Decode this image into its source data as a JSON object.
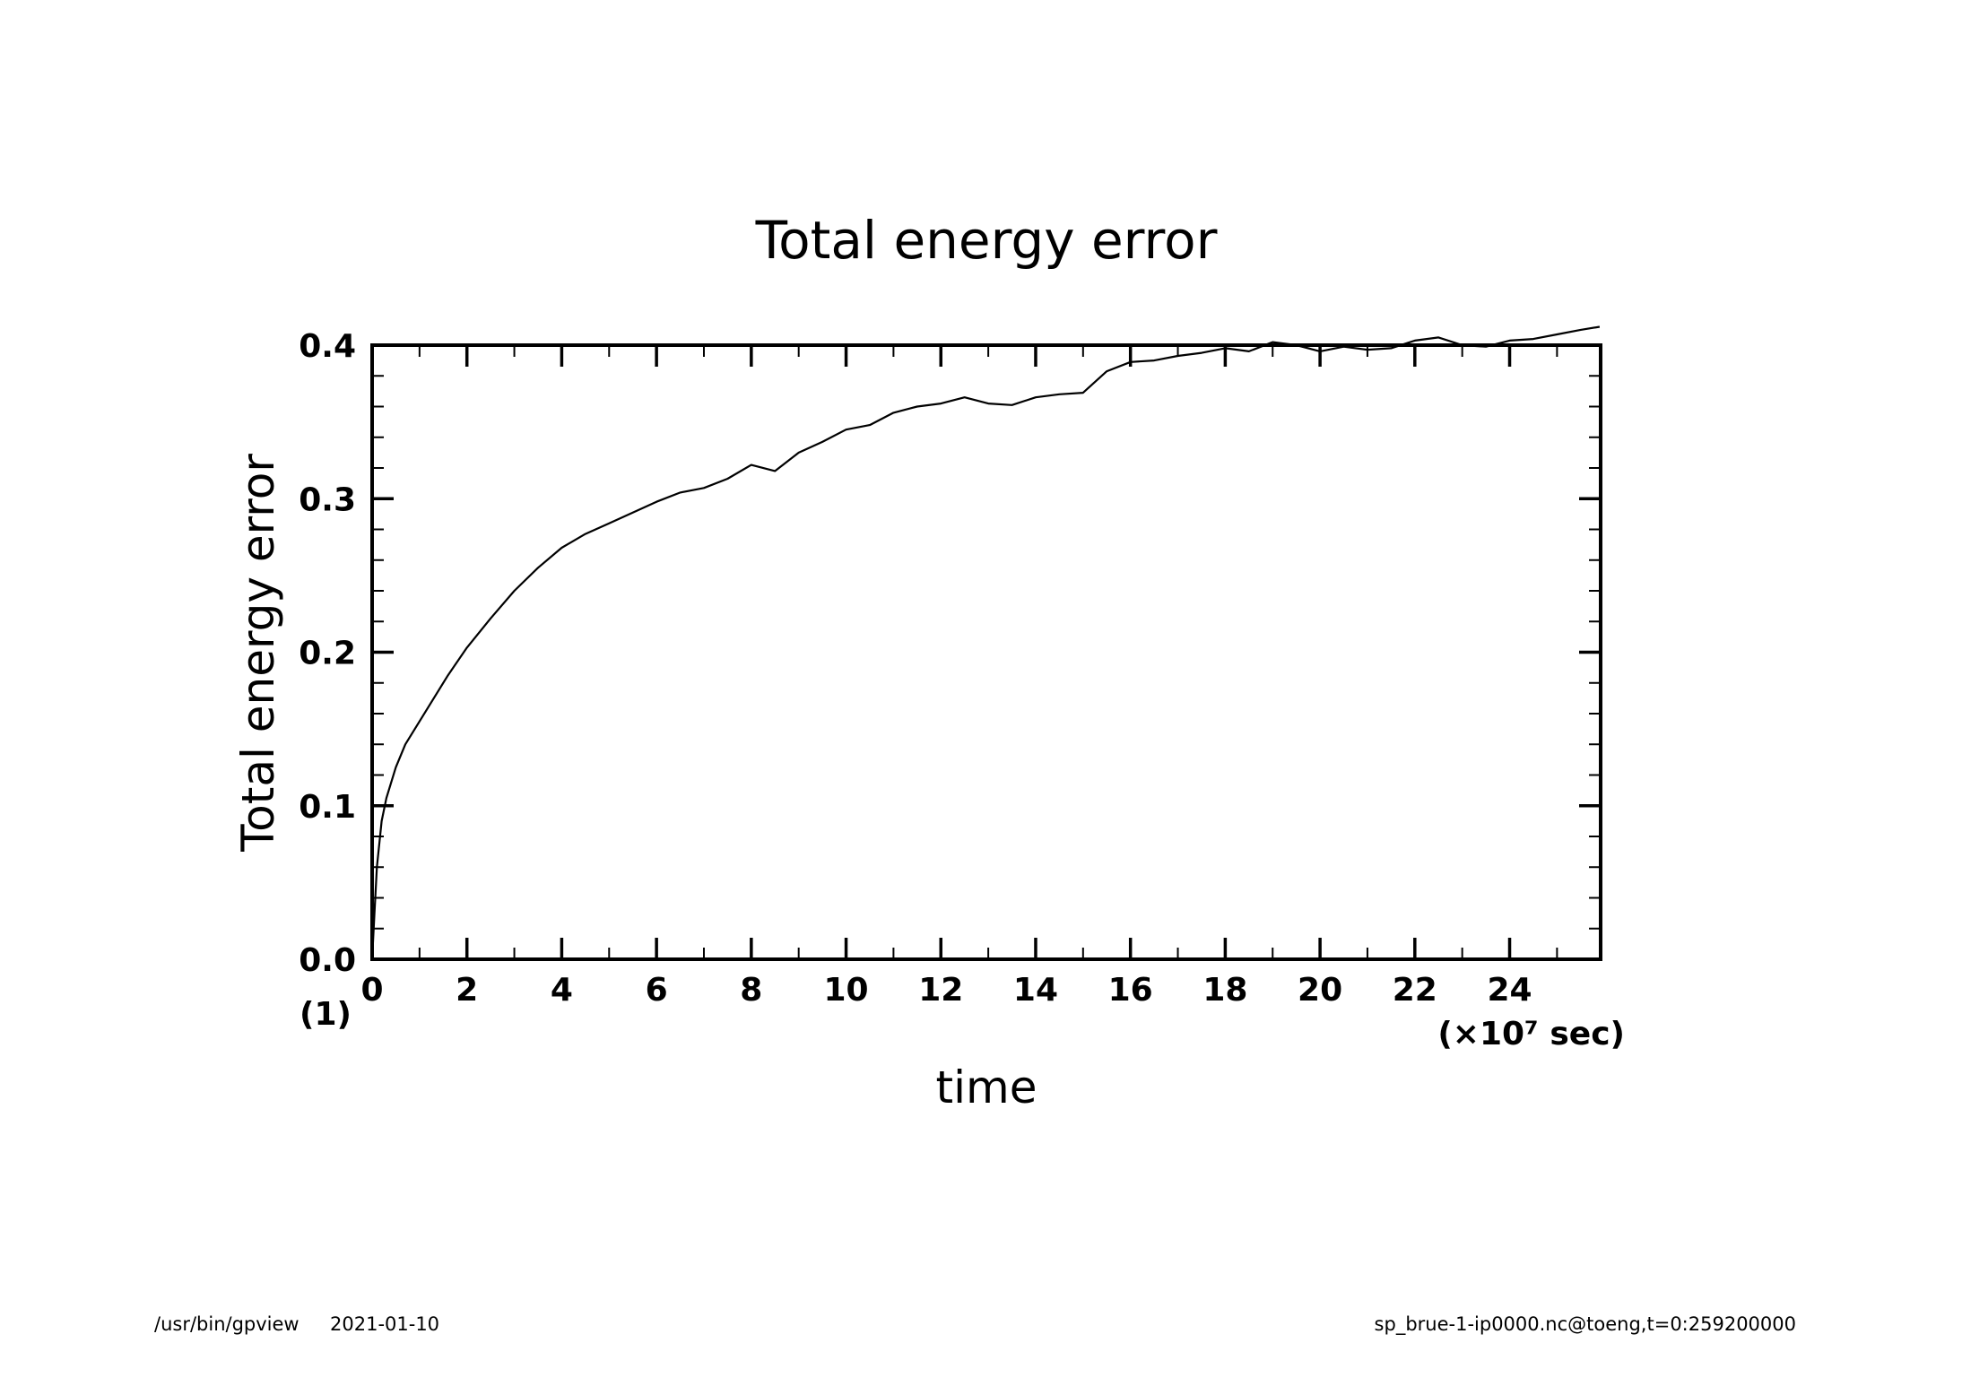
{
  "chart_data": {
    "type": "line",
    "title": "Total energy error",
    "xlabel": "time",
    "ylabel": "Total energy error",
    "x_unit_label": "(×10⁷ sec)",
    "y_unit_label": "(1)",
    "xlim": [
      0,
      25.92
    ],
    "ylim": [
      0,
      0.4
    ],
    "x_ticks": [
      "0",
      "2",
      "4",
      "6",
      "8",
      "10",
      "12",
      "14",
      "16",
      "18",
      "20",
      "22",
      "24"
    ],
    "y_ticks": [
      "0.0",
      "0.1",
      "0.2",
      "0.3",
      "0.4"
    ],
    "grid": false,
    "series": [
      {
        "x": [
          0,
          0.05,
          0.1,
          0.2,
          0.3,
          0.5,
          0.7,
          1.0,
          1.3,
          1.6,
          2.0,
          2.5,
          3.0,
          3.5,
          4.0,
          4.5,
          5.0,
          5.5,
          6.0,
          6.5,
          7.0,
          7.5,
          8.0,
          8.5,
          9.0,
          9.5,
          10.0,
          10.5,
          11.0,
          11.5,
          12.0,
          12.5,
          13.0,
          13.5,
          14.0,
          14.5,
          15.0,
          15.5,
          16.0,
          16.5,
          17.0,
          17.5,
          18.0,
          18.5,
          19.0,
          19.5,
          20.0,
          20.5,
          21.0,
          21.5,
          22.0,
          22.5,
          23.0,
          23.5,
          24.0,
          24.5,
          25.0,
          25.5,
          25.9
        ],
        "y": [
          0.0,
          0.03,
          0.06,
          0.09,
          0.105,
          0.125,
          0.14,
          0.155,
          0.17,
          0.185,
          0.203,
          0.222,
          0.24,
          0.255,
          0.268,
          0.277,
          0.284,
          0.291,
          0.298,
          0.304,
          0.307,
          0.313,
          0.322,
          0.318,
          0.33,
          0.337,
          0.345,
          0.348,
          0.356,
          0.36,
          0.362,
          0.366,
          0.362,
          0.361,
          0.366,
          0.368,
          0.369,
          0.383,
          0.389,
          0.39,
          0.393,
          0.395,
          0.398,
          0.396,
          0.402,
          0.4,
          0.396,
          0.399,
          0.397,
          0.398,
          0.403,
          0.405,
          0.4,
          0.399,
          0.403,
          0.404,
          0.407,
          0.41,
          0.412
        ]
      }
    ]
  },
  "footer": {
    "left_program": "/usr/bin/gpview",
    "left_date": "2021-01-10",
    "right_source": "sp_brue-1-ip0000.nc@toeng,t=0:259200000"
  }
}
